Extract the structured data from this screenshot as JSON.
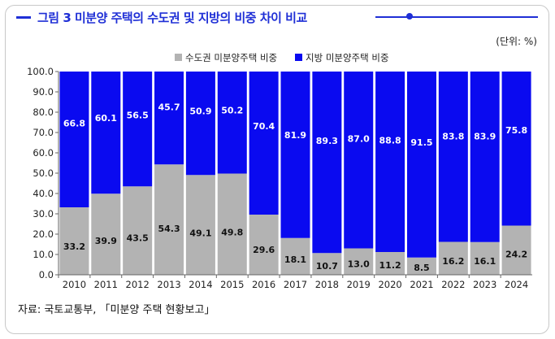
{
  "title": "그림 3 미분양 주택의 수도권 및 지방의 비중 차이 비교",
  "unit": "(단위: %)",
  "source": "자료: 국토교통부, 「미분양 주택 현황보고」",
  "colors": {
    "accent": "#1f2fd6",
    "capital": "#b3b3b3",
    "regional": "#0a0af0"
  },
  "chart_data": {
    "type": "bar",
    "stacked": true,
    "categories": [
      "2010",
      "2011",
      "2012",
      "2013",
      "2014",
      "2015",
      "2016",
      "2017",
      "2018",
      "2019",
      "2020",
      "2021",
      "2022",
      "2023",
      "2024"
    ],
    "series": [
      {
        "name": "수도권 미분양주택 비중",
        "color": "#b3b3b3",
        "values": [
          33.2,
          39.9,
          43.5,
          54.3,
          49.1,
          49.8,
          29.6,
          18.1,
          10.7,
          13.0,
          11.2,
          8.5,
          16.2,
          16.1,
          24.2
        ],
        "labels": [
          "33.2",
          "39.9",
          "43.5",
          "54.3",
          "49.1",
          "49.8",
          "29.6",
          "18.1",
          "10.7",
          "13.0",
          "11.2",
          "8.5",
          "16.2",
          "16.1",
          "24.2"
        ]
      },
      {
        "name": "지방 미분양주택 비중",
        "color": "#0a0af0",
        "values": [
          66.8,
          60.1,
          56.5,
          45.7,
          50.9,
          50.2,
          70.4,
          81.9,
          89.3,
          87.0,
          88.8,
          91.5,
          83.8,
          83.9,
          75.8
        ],
        "labels": [
          "66.8",
          "60.1",
          "56.5",
          "45.7",
          "50.9",
          "50.2",
          "70.4",
          "81.9",
          "89.3",
          "87.0",
          "88.8",
          "91.5",
          "83.8",
          "83.9",
          "75.8"
        ]
      }
    ],
    "ylim": [
      0,
      100
    ],
    "yticks": [
      "0.0",
      "10.0",
      "20.0",
      "30.0",
      "40.0",
      "50.0",
      "60.0",
      "70.0",
      "80.0",
      "90.0",
      "100.0"
    ],
    "legend": "top-right",
    "grid": false
  }
}
